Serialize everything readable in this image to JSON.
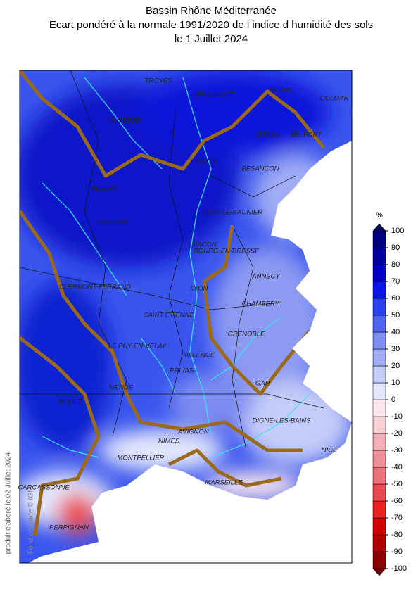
{
  "header": {
    "title_lines": [
      "Bassin Rhône Méditerranée",
      "Ecart pondéré à la normale 1991/2020 de l indice d humidité des sols",
      "le 1 Juillet 2024"
    ]
  },
  "map": {
    "cities": [
      "TROYES",
      "CHAUMONT",
      "EPINAL",
      "COLMAR",
      "AUXERRE",
      "VESOUL",
      "BELFORT",
      "DIJON",
      "BESANCON",
      "NEVERS",
      "LONS-LE-SAUNIER",
      "MOULINS",
      "MACON",
      "BOURG-EN-BRESSE",
      "ANNECY",
      "CLERMONT-FERRAND",
      "LYON",
      "CHAMBERY",
      "SAINT-ETIENNE",
      "GRENOBLE",
      "LE PUY-EN-VELAY",
      "VALENCE",
      "PRIVAS",
      "GAP",
      "MENDE",
      "RODEZ",
      "DIGNE-LES-BAINS",
      "AVIGNON",
      "NIMES",
      "NICE",
      "MONTPELLIER",
      "MARSEILLE",
      "CARCASSONNE",
      "PERPIGNAN"
    ],
    "credit": "Fond de Carte © IGN"
  },
  "colorbar": {
    "unit": "%",
    "ticks": [
      -100,
      -90,
      -80,
      -70,
      -60,
      -50,
      -40,
      -30,
      -20,
      -10,
      0,
      10,
      20,
      30,
      40,
      50,
      60,
      70,
      80,
      90,
      100
    ],
    "colors": [
      "#8c0000",
      "#b00000",
      "#d00000",
      "#e82020",
      "#e84850",
      "#ec7078",
      "#f09098",
      "#f4b0b8",
      "#f8d0d4",
      "#fce8ec",
      "#e4e8fc",
      "#c4ccf8",
      "#a0acf4",
      "#7c8cf0",
      "#5064f0",
      "#2840f0",
      "#0a14e6",
      "#0000c8",
      "#0000a0",
      "#000080"
    ],
    "low_color": "#700000",
    "high_color": "#000060"
  },
  "footer": {
    "produced": "produit élaboré le 02 Juillet 2024"
  }
}
